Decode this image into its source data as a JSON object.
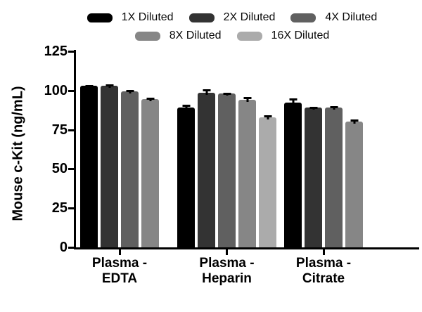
{
  "chart_data": {
    "type": "bar",
    "title": "",
    "ylabel": "Mouse c-Kit (ng/mL)",
    "xlabel": "",
    "ylim": [
      0,
      125
    ],
    "yticks": [
      0,
      25,
      50,
      75,
      100,
      125
    ],
    "grid": false,
    "legend_position": "top",
    "categories": [
      "Plasma - EDTA",
      "Plasma - Heparin",
      "Plasma - Citrate"
    ],
    "category_label_lines": [
      [
        "Plasma -",
        "EDTA"
      ],
      [
        "Plasma -",
        "Heparin"
      ],
      [
        "Plasma -",
        "Citrate"
      ]
    ],
    "series": [
      {
        "name": "1X Diluted",
        "color": "#000000",
        "values": [
          103,
          89,
          92.5
        ],
        "errors": [
          0.7,
          2.0,
          2.5
        ]
      },
      {
        "name": "2X Diluted",
        "color": "#333333",
        "values": [
          103,
          98.5,
          89
        ],
        "errors": [
          0.9,
          2.5,
          0.6
        ]
      },
      {
        "name": "4X Diluted",
        "color": "#606060",
        "values": [
          99.5,
          98,
          89
        ],
        "errors": [
          0.8,
          0.7,
          1.2
        ]
      },
      {
        "name": "8X Diluted",
        "color": "#868686",
        "values": [
          94.5,
          94,
          80
        ],
        "errors": [
          1.0,
          2.0,
          1.6
        ]
      },
      {
        "name": "16X Diluted",
        "color": "#ababab",
        "values": [
          null,
          83,
          null
        ],
        "errors": [
          null,
          1.3,
          null
        ]
      }
    ]
  }
}
